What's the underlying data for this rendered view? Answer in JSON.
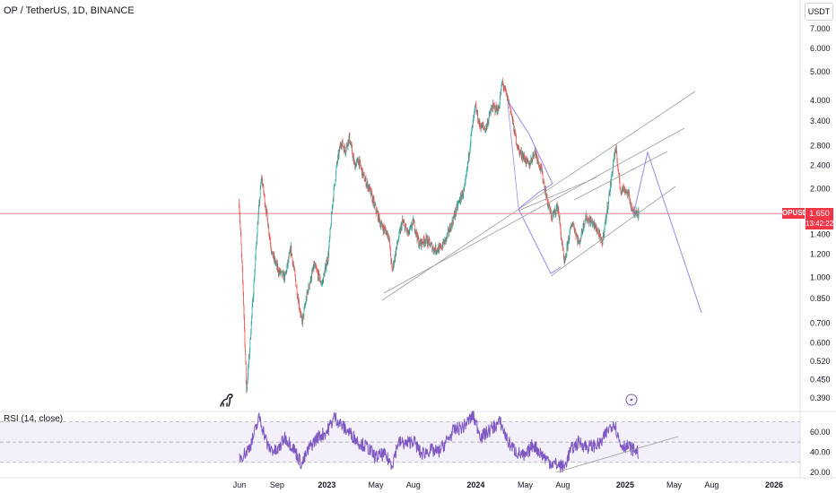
{
  "header": {
    "symbol": "OP / TetherUS, 1D, BINANCE"
  },
  "currency_button": "USDT",
  "price_tag": {
    "ticker": "OPUSDT",
    "price": "1.650",
    "countdown": "13:42:22"
  },
  "rsi": {
    "title": "RSI (14, close)"
  },
  "icons": {
    "logo": "dinosaur-icon",
    "event": "lightning-event-icon"
  },
  "colors": {
    "up": "#26a69a",
    "down": "#ef5350",
    "priceline": "#f23645",
    "rsi": "#7e57c2",
    "trend": "#9e9e9e",
    "projection": "#9c89e8"
  },
  "chart_data": {
    "type": "candlestick",
    "price_axis": {
      "scale": "log",
      "ticks": [
        "7.000",
        "6.000",
        "5.000",
        "4.000",
        "3.400",
        "2.800",
        "2.400",
        "2.000",
        "1.650",
        "1.400",
        "1.200",
        "1.000",
        "0.850",
        "0.700",
        "0.600",
        "0.520",
        "0.450",
        "0.390"
      ],
      "label_values": [
        7.0,
        6.0,
        5.0,
        4.0,
        3.4,
        2.8,
        2.4,
        2.0,
        1.65,
        1.4,
        1.2,
        1.0,
        0.85,
        0.7,
        0.6,
        0.52,
        0.45,
        0.39
      ]
    },
    "time_axis": {
      "ticks": [
        "Jun",
        "Sep",
        "2023",
        "May",
        "Aug",
        "2024",
        "May",
        "Aug",
        "2025",
        "May",
        "Aug",
        "2026"
      ],
      "dates": [
        "2022-06-01",
        "2022-09-01",
        "2023-01-01",
        "2023-05-01",
        "2023-08-01",
        "2024-01-01",
        "2024-05-01",
        "2024-08-01",
        "2025-01-01",
        "2025-05-01",
        "2025-08-01",
        "2026-01-01"
      ]
    },
    "current_price": 1.65,
    "price_path": [
      [
        "2022-05-31",
        1.8
      ],
      [
        "2022-06-10",
        0.9
      ],
      [
        "2022-06-18",
        0.41
      ],
      [
        "2022-06-25",
        0.55
      ],
      [
        "2022-07-05",
        0.9
      ],
      [
        "2022-07-15",
        1.5
      ],
      [
        "2022-07-25",
        2.2
      ],
      [
        "2022-08-05",
        1.7
      ],
      [
        "2022-08-20",
        1.2
      ],
      [
        "2022-09-05",
        1.05
      ],
      [
        "2022-09-20",
        1.0
      ],
      [
        "2022-10-05",
        1.25
      ],
      [
        "2022-10-20",
        0.9
      ],
      [
        "2022-11-01",
        0.7
      ],
      [
        "2022-11-15",
        0.9
      ],
      [
        "2022-12-01",
        1.1
      ],
      [
        "2022-12-20",
        0.95
      ],
      [
        "2023-01-05",
        1.2
      ],
      [
        "2023-01-15",
        1.8
      ],
      [
        "2023-01-25",
        2.4
      ],
      [
        "2023-02-05",
        2.9
      ],
      [
        "2023-02-15",
        2.7
      ],
      [
        "2023-02-25",
        3.0
      ],
      [
        "2023-03-10",
        2.4
      ],
      [
        "2023-03-20",
        2.5
      ],
      [
        "2023-04-01",
        2.2
      ],
      [
        "2023-04-15",
        2.0
      ],
      [
        "2023-05-01",
        1.7
      ],
      [
        "2023-05-15",
        1.5
      ],
      [
        "2023-06-01",
        1.4
      ],
      [
        "2023-06-10",
        1.05
      ],
      [
        "2023-06-20",
        1.25
      ],
      [
        "2023-07-05",
        1.55
      ],
      [
        "2023-07-20",
        1.4
      ],
      [
        "2023-08-01",
        1.55
      ],
      [
        "2023-08-15",
        1.3
      ],
      [
        "2023-09-01",
        1.35
      ],
      [
        "2023-09-20",
        1.25
      ],
      [
        "2023-10-05",
        1.25
      ],
      [
        "2023-10-20",
        1.35
      ],
      [
        "2023-11-05",
        1.55
      ],
      [
        "2023-11-20",
        1.8
      ],
      [
        "2023-12-05",
        2.0
      ],
      [
        "2023-12-20",
        3.0
      ],
      [
        "2023-12-31",
        3.8
      ],
      [
        "2024-01-10",
        3.3
      ],
      [
        "2024-01-25",
        3.2
      ],
      [
        "2024-02-10",
        3.8
      ],
      [
        "2024-02-25",
        3.7
      ],
      [
        "2024-03-06",
        4.6
      ],
      [
        "2024-03-15",
        4.2
      ],
      [
        "2024-03-25",
        3.8
      ],
      [
        "2024-04-05",
        3.1
      ],
      [
        "2024-04-15",
        2.7
      ],
      [
        "2024-04-25",
        2.6
      ],
      [
        "2024-05-10",
        2.4
      ],
      [
        "2024-05-25",
        2.7
      ],
      [
        "2024-06-10",
        2.3
      ],
      [
        "2024-06-25",
        1.8
      ],
      [
        "2024-07-05",
        1.6
      ],
      [
        "2024-07-20",
        1.75
      ],
      [
        "2024-08-05",
        1.1
      ],
      [
        "2024-08-15",
        1.35
      ],
      [
        "2024-08-25",
        1.55
      ],
      [
        "2024-09-10",
        1.3
      ],
      [
        "2024-09-25",
        1.6
      ],
      [
        "2024-10-10",
        1.55
      ],
      [
        "2024-10-25",
        1.45
      ],
      [
        "2024-11-05",
        1.3
      ],
      [
        "2024-11-15",
        1.6
      ],
      [
        "2024-11-25",
        2.0
      ],
      [
        "2024-12-05",
        2.6
      ],
      [
        "2024-12-10",
        2.7
      ],
      [
        "2024-12-20",
        2.0
      ],
      [
        "2024-12-31",
        2.0
      ],
      [
        "2025-01-10",
        1.9
      ],
      [
        "2025-01-20",
        1.65
      ],
      [
        "2025-01-28",
        1.7
      ],
      [
        "2025-02-03",
        1.65
      ]
    ],
    "rsi_axis": {
      "ticks": [
        "60.00",
        "40.00",
        "20.00"
      ],
      "label_values": [
        60,
        40,
        20
      ],
      "bands": [
        70,
        50,
        30
      ]
    },
    "rsi_path": [
      [
        "2022-06-01",
        35
      ],
      [
        "2022-06-18",
        40
      ],
      [
        "2022-07-01",
        50
      ],
      [
        "2022-07-20",
        75
      ],
      [
        "2022-08-10",
        45
      ],
      [
        "2022-09-01",
        40
      ],
      [
        "2022-09-20",
        55
      ],
      [
        "2022-10-10",
        45
      ],
      [
        "2022-11-01",
        28
      ],
      [
        "2022-11-20",
        45
      ],
      [
        "2022-12-10",
        55
      ],
      [
        "2023-01-01",
        60
      ],
      [
        "2023-01-20",
        75
      ],
      [
        "2023-02-10",
        65
      ],
      [
        "2023-03-01",
        58
      ],
      [
        "2023-03-20",
        50
      ],
      [
        "2023-04-10",
        45
      ],
      [
        "2023-05-01",
        35
      ],
      [
        "2023-05-20",
        38
      ],
      [
        "2023-06-10",
        28
      ],
      [
        "2023-06-25",
        50
      ],
      [
        "2023-07-15",
        48
      ],
      [
        "2023-08-01",
        52
      ],
      [
        "2023-08-20",
        38
      ],
      [
        "2023-09-10",
        42
      ],
      [
        "2023-10-01",
        40
      ],
      [
        "2023-10-20",
        50
      ],
      [
        "2023-11-10",
        62
      ],
      [
        "2023-12-01",
        65
      ],
      [
        "2023-12-25",
        76
      ],
      [
        "2024-01-15",
        55
      ],
      [
        "2024-02-05",
        62
      ],
      [
        "2024-03-01",
        70
      ],
      [
        "2024-03-20",
        50
      ],
      [
        "2024-04-10",
        40
      ],
      [
        "2024-05-01",
        35
      ],
      [
        "2024-05-20",
        48
      ],
      [
        "2024-06-10",
        38
      ],
      [
        "2024-07-01",
        30
      ],
      [
        "2024-08-05",
        25
      ],
      [
        "2024-08-20",
        42
      ],
      [
        "2024-09-10",
        50
      ],
      [
        "2024-10-01",
        45
      ],
      [
        "2024-11-01",
        48
      ],
      [
        "2024-11-20",
        62
      ],
      [
        "2024-12-05",
        70
      ],
      [
        "2024-12-20",
        48
      ],
      [
        "2025-01-10",
        45
      ],
      [
        "2025-02-03",
        40
      ]
    ]
  }
}
